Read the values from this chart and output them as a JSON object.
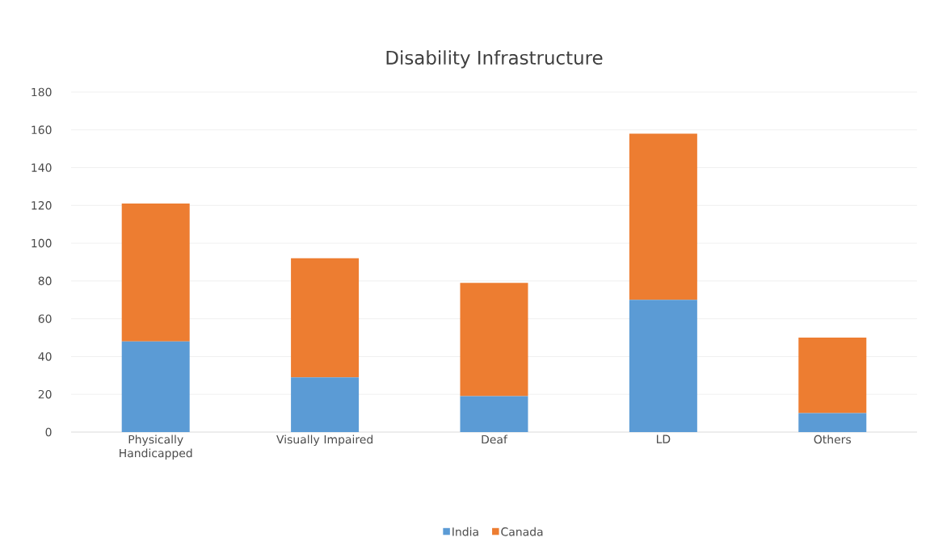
{
  "chart_data": {
    "type": "bar",
    "title": "Disability Infrastructure",
    "stacked": true,
    "categories": [
      "Physically Handicapped",
      "Visually Impaired",
      "Deaf",
      "LD",
      "Others"
    ],
    "series": [
      {
        "name": "India",
        "color": "#5b9bd5",
        "values": [
          48,
          29,
          19,
          70,
          10
        ]
      },
      {
        "name": "Canada",
        "color": "#ed7d31",
        "values": [
          73,
          63,
          60,
          88,
          40
        ]
      }
    ],
    "ylim": [
      0,
      180
    ],
    "yticks": [
      0,
      20,
      40,
      60,
      80,
      100,
      120,
      140,
      160,
      180
    ],
    "grid": "y",
    "legend": "bottom"
  }
}
